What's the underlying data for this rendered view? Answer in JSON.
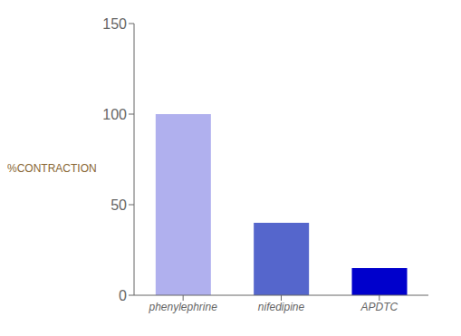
{
  "chart_data": {
    "type": "bar",
    "ylabel": "%CONTRACTION",
    "categories": [
      "phenylephrine",
      "nifedipine",
      "APDTC"
    ],
    "values": [
      100,
      40,
      15
    ],
    "colors": [
      "#b0b0ee",
      "#5566cc",
      "#0000cc"
    ],
    "ylim": [
      0,
      150
    ],
    "yticks": [
      0,
      50,
      100,
      150
    ],
    "grid": false
  }
}
